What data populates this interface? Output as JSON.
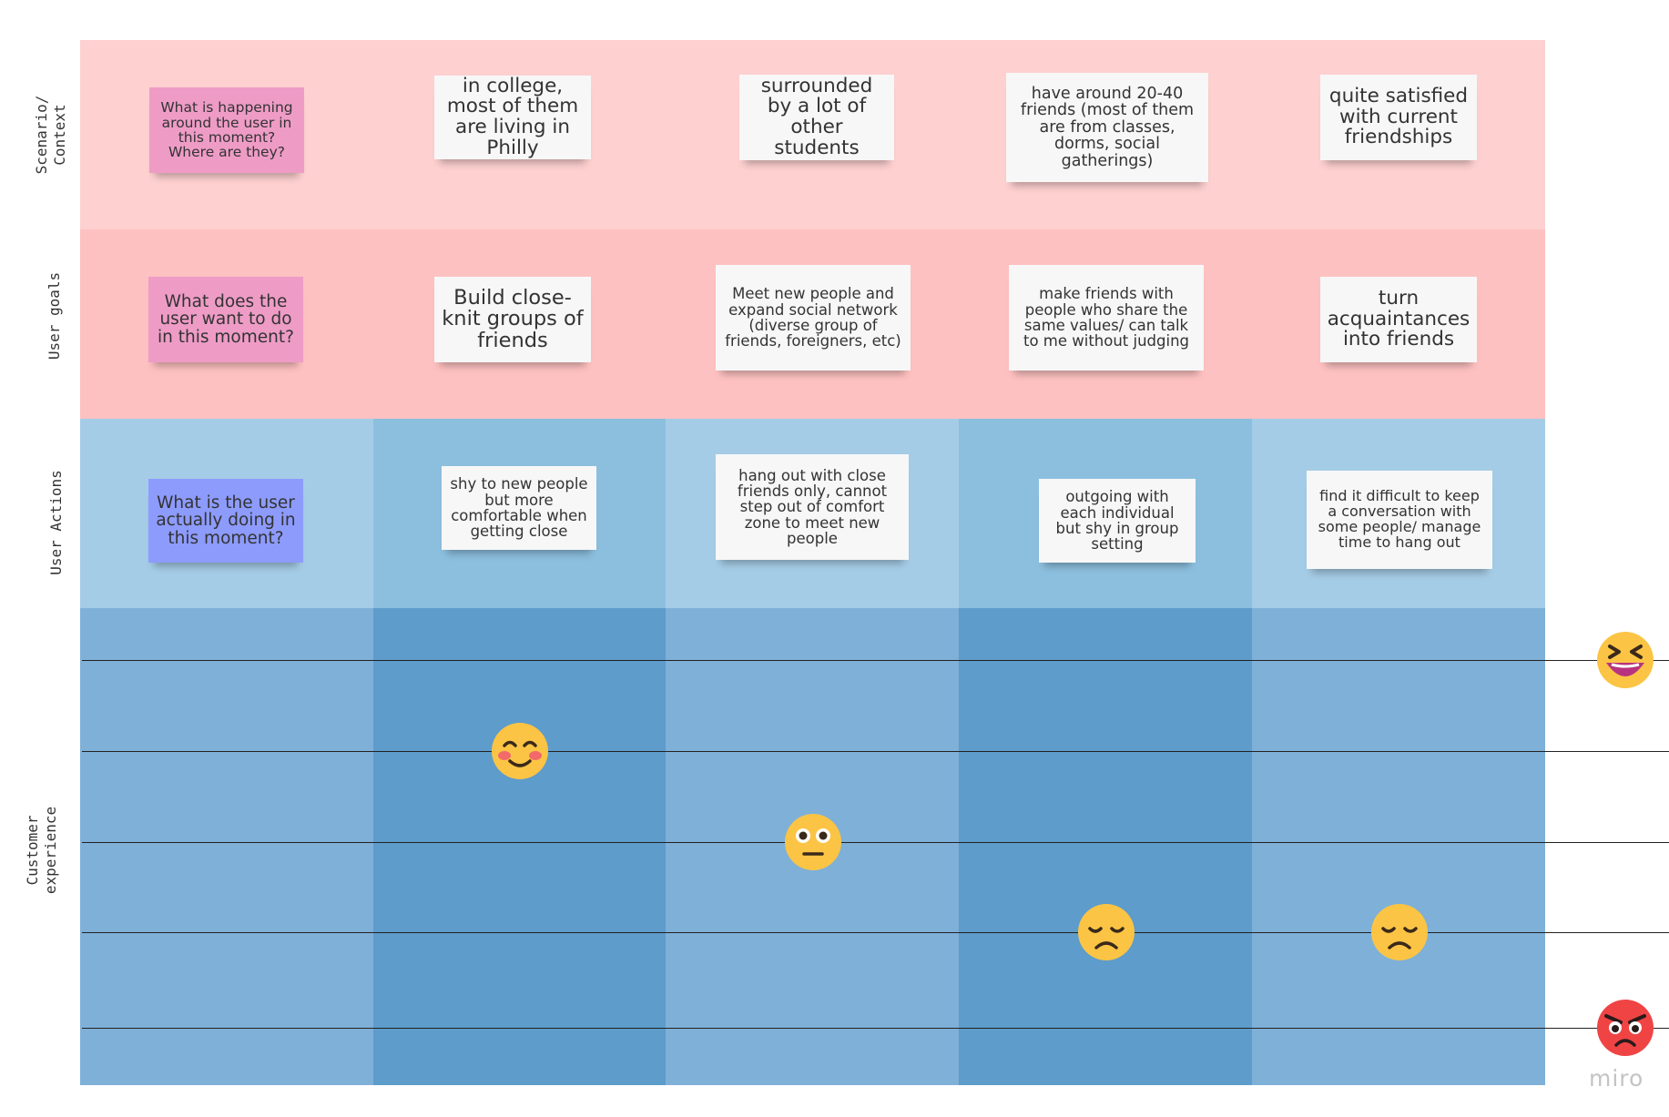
{
  "columns": 5,
  "rows": [
    {
      "label": "Scenario/\nContext",
      "prompt": "What is happening around the user in this moment? Where are they?",
      "prompt_color": "#ee9cc6",
      "cells": [
        "in college, most of them are living in Philly",
        "surrounded by a lot of other students",
        "have around 20-40 friends (most of them are from classes, dorms, social gatherings)",
        "quite satisfied with current friendships"
      ]
    },
    {
      "label": "User goals",
      "prompt": "What does the user want to do in this moment?",
      "prompt_color": "#ee9cc6",
      "cells": [
        "Build close-knit groups of friends",
        "Meet new people and expand social network (diverse group of friends, foreigners, etc)",
        "make friends with people who share the same values/ can talk to me without judging",
        "turn acquaintances into friends"
      ]
    },
    {
      "label": "User Actions",
      "prompt": "What is the user actually doing in this moment?",
      "prompt_color": "#8d9bfd",
      "cells": [
        "shy to new people but more comfortable when getting close",
        "hang out with close friends only, cannot step out of comfort zone to meet new people",
        "outgoing with each individual but shy in group setting",
        "find it difficult to keep a conversation with some people/ manage time to hang out"
      ]
    },
    {
      "label": "Customer\nexperience"
    }
  ],
  "experience": {
    "scale": [
      {
        "level": 5,
        "icon": "laughing-face-icon"
      },
      {
        "level": 4,
        "icon": "smiling-blush-face-icon"
      },
      {
        "level": 3,
        "icon": "neutral-face-icon"
      },
      {
        "level": 2,
        "icon": "sad-face-icon"
      },
      {
        "level": 1,
        "icon": "angry-face-icon"
      }
    ],
    "points": [
      {
        "column": 2,
        "level": 4,
        "icon": "smiling-blush-face-icon"
      },
      {
        "column": 3,
        "level": 3,
        "icon": "neutral-face-icon"
      },
      {
        "column": 4,
        "level": 2,
        "icon": "sad-face-icon"
      },
      {
        "column": 5,
        "level": 2,
        "icon": "sad-face-icon"
      }
    ]
  },
  "colors": {
    "pink_row_1": "#fed0d0",
    "pink_row_2": "#fec1c1",
    "blue_light": "#a5cce6",
    "blue_mid": "#8cbfde",
    "exp_light": "#7eb0d8",
    "exp_dark": "#5d9ccb",
    "note": "#f7f7f7",
    "emoji_yellow": "#fcc444",
    "emoji_red": "#f04444"
  },
  "brand": "miro"
}
